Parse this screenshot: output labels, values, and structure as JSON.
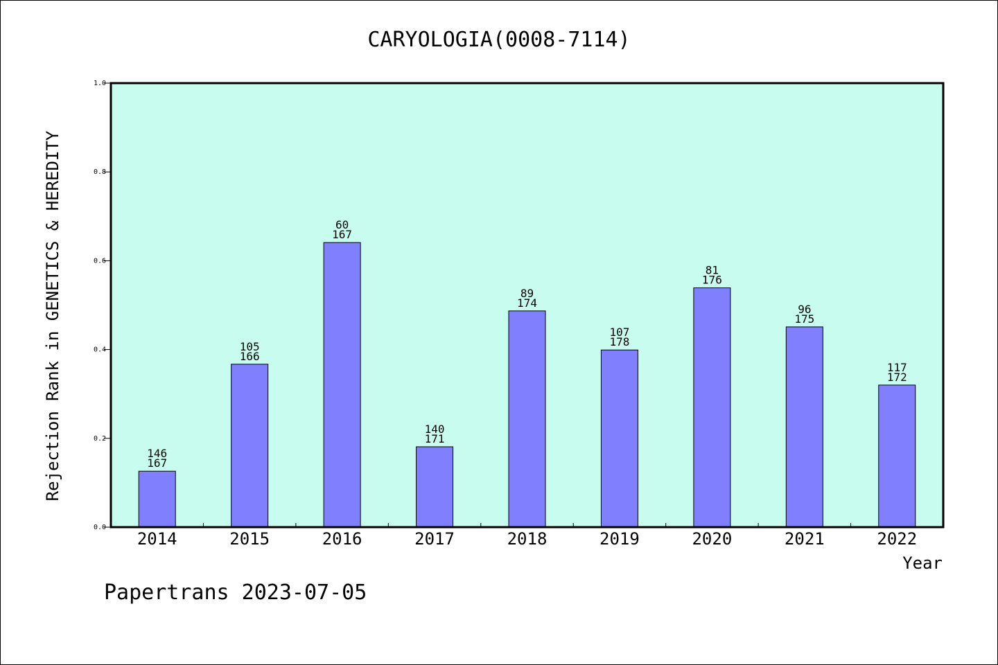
{
  "chart_data": {
    "type": "bar",
    "title": "CARYOLOGIA(0008-7114)",
    "xlabel": "Year",
    "ylabel": "Rejection Rank in GENETICS & HEREDITY",
    "ylim": [
      0,
      1.0
    ],
    "yticks": [
      "0.0",
      "0.2",
      "0.4",
      "0.6",
      "0.8",
      "1.0"
    ],
    "categories": [
      "2014",
      "2015",
      "2016",
      "2017",
      "2018",
      "2019",
      "2020",
      "2021",
      "2022"
    ],
    "values": [
      0.126,
      0.367,
      0.641,
      0.181,
      0.487,
      0.399,
      0.539,
      0.451,
      0.32
    ],
    "rank": [
      "146",
      "105",
      "60",
      "140",
      "89",
      "107",
      "81",
      "96",
      "117"
    ],
    "total": [
      "167",
      "166",
      "167",
      "171",
      "174",
      "178",
      "176",
      "175",
      "172"
    ],
    "grid": false,
    "colors": {
      "plot_bg": "#c8fcee",
      "bar_fill": "#8080ff",
      "bar_stroke": "#000000",
      "axis": "#000000"
    }
  },
  "footer": "Papertrans 2023-07-05"
}
